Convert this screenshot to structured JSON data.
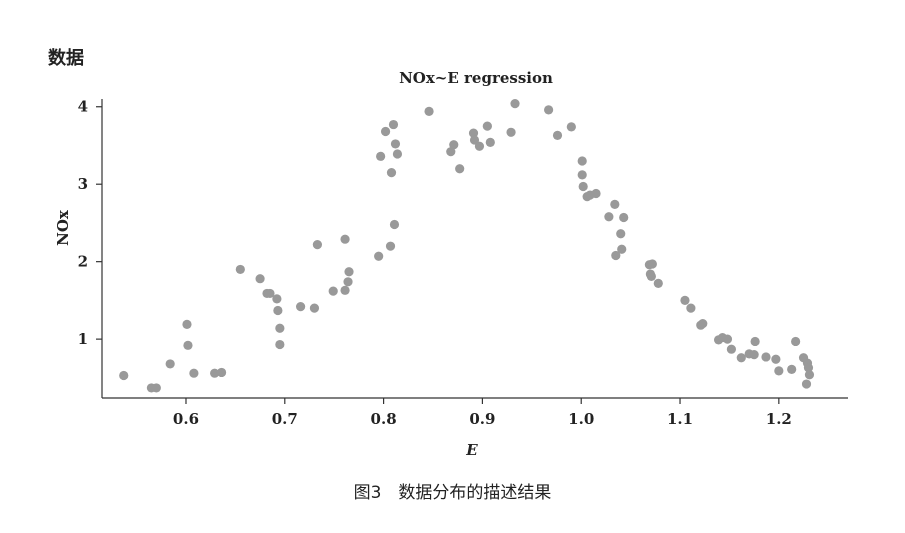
{
  "corner_label": "数据",
  "caption": "图3　数据分布的描述结果",
  "chart_data": {
    "type": "scatter",
    "title": "NOx~E regression",
    "xlabel": "E",
    "ylabel": "NOx",
    "xlim": [
      0.515,
      1.27
    ],
    "ylim": [
      0.24,
      4.1
    ],
    "xticks": [
      0.6,
      0.7,
      0.8,
      0.9,
      1.0,
      1.1,
      1.2
    ],
    "xtick_labels": [
      "0.6",
      "0.7",
      "0.8",
      "0.9",
      "1.0",
      "1.1",
      "1.2"
    ],
    "yticks": [
      1,
      2,
      3,
      4
    ],
    "ytick_labels": [
      "1",
      "2",
      "3",
      "4"
    ],
    "grid": false,
    "marker_color": "#999999",
    "points": [
      [
        0.537,
        0.53
      ],
      [
        0.565,
        0.37
      ],
      [
        0.57,
        0.37
      ],
      [
        0.584,
        0.68
      ],
      [
        0.601,
        1.19
      ],
      [
        0.602,
        0.92
      ],
      [
        0.608,
        0.56
      ],
      [
        0.629,
        0.56
      ],
      [
        0.636,
        0.57
      ],
      [
        0.655,
        1.9
      ],
      [
        0.675,
        1.78
      ],
      [
        0.682,
        1.59
      ],
      [
        0.685,
        1.59
      ],
      [
        0.692,
        1.52
      ],
      [
        0.693,
        1.37
      ],
      [
        0.695,
        1.14
      ],
      [
        0.695,
        0.93
      ],
      [
        0.716,
        1.42
      ],
      [
        0.73,
        1.4
      ],
      [
        0.733,
        2.22
      ],
      [
        0.749,
        1.62
      ],
      [
        0.761,
        2.29
      ],
      [
        0.761,
        1.63
      ],
      [
        0.764,
        1.74
      ],
      [
        0.765,
        1.87
      ],
      [
        0.795,
        2.07
      ],
      [
        0.797,
        3.36
      ],
      [
        0.802,
        3.68
      ],
      [
        0.807,
        2.2
      ],
      [
        0.808,
        3.15
      ],
      [
        0.81,
        3.77
      ],
      [
        0.811,
        2.48
      ],
      [
        0.812,
        3.52
      ],
      [
        0.814,
        3.39
      ],
      [
        0.846,
        3.94
      ],
      [
        0.868,
        3.42
      ],
      [
        0.871,
        3.51
      ],
      [
        0.877,
        3.2
      ],
      [
        0.891,
        3.66
      ],
      [
        0.892,
        3.57
      ],
      [
        0.897,
        3.49
      ],
      [
        0.905,
        3.75
      ],
      [
        0.908,
        3.54
      ],
      [
        0.929,
        3.67
      ],
      [
        0.933,
        4.04
      ],
      [
        0.967,
        3.96
      ],
      [
        0.976,
        3.63
      ],
      [
        0.99,
        3.74
      ],
      [
        1.001,
        3.3
      ],
      [
        1.001,
        3.12
      ],
      [
        1.002,
        2.97
      ],
      [
        1.006,
        2.84
      ],
      [
        1.009,
        2.86
      ],
      [
        1.015,
        2.88
      ],
      [
        1.028,
        2.58
      ],
      [
        1.034,
        2.74
      ],
      [
        1.035,
        2.08
      ],
      [
        1.04,
        2.36
      ],
      [
        1.041,
        2.16
      ],
      [
        1.043,
        2.57
      ],
      [
        1.069,
        1.96
      ],
      [
        1.07,
        1.84
      ],
      [
        1.071,
        1.81
      ],
      [
        1.072,
        1.97
      ],
      [
        1.078,
        1.72
      ],
      [
        1.105,
        1.5
      ],
      [
        1.111,
        1.4
      ],
      [
        1.121,
        1.18
      ],
      [
        1.123,
        1.2
      ],
      [
        1.139,
        0.99
      ],
      [
        1.143,
        1.02
      ],
      [
        1.148,
        1.0
      ],
      [
        1.152,
        0.87
      ],
      [
        1.162,
        0.76
      ],
      [
        1.17,
        0.81
      ],
      [
        1.175,
        0.8
      ],
      [
        1.176,
        0.97
      ],
      [
        1.187,
        0.77
      ],
      [
        1.197,
        0.74
      ],
      [
        1.2,
        0.59
      ],
      [
        1.213,
        0.61
      ],
      [
        1.217,
        0.97
      ],
      [
        1.225,
        0.76
      ],
      [
        1.228,
        0.42
      ],
      [
        1.229,
        0.69
      ],
      [
        1.23,
        0.63
      ],
      [
        1.231,
        0.54
      ]
    ]
  }
}
